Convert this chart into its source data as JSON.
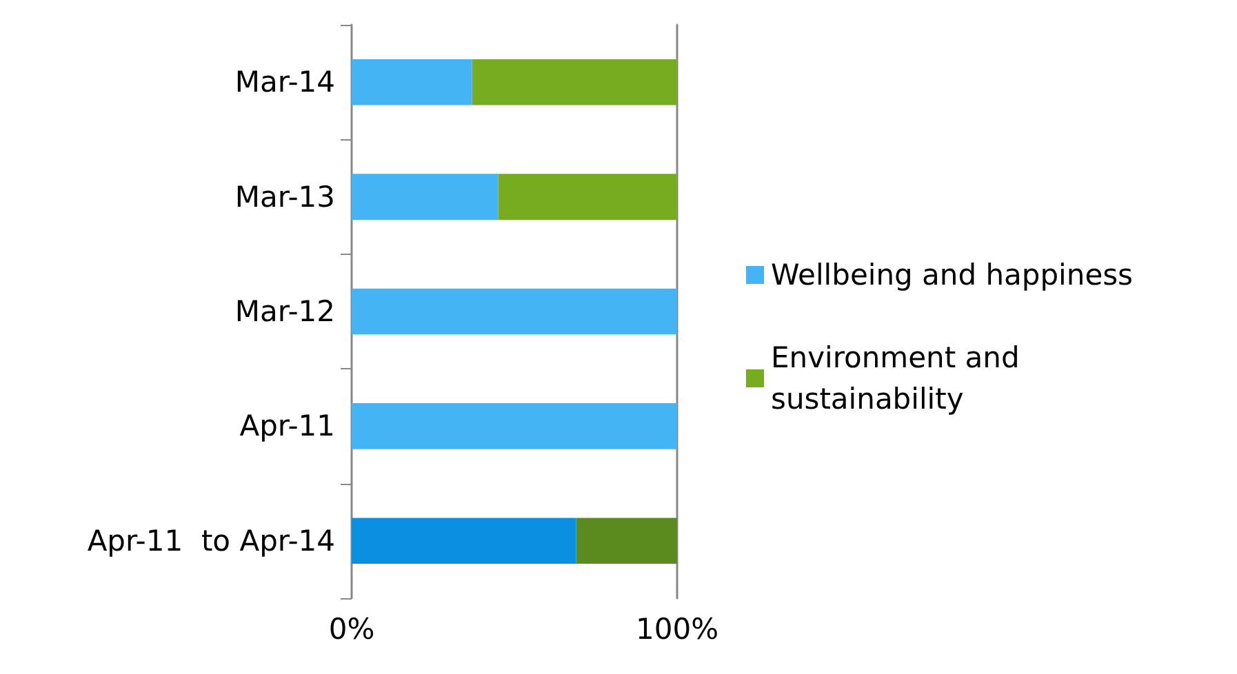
{
  "chart_data": {
    "type": "bar",
    "orientation": "horizontal",
    "stacked": true,
    "categories": [
      "Mar-14",
      "Mar-13",
      "Mar-12",
      "Apr-11",
      "Apr-11  to Apr-14"
    ],
    "series": [
      {
        "name": "Wellbeing and happiness",
        "color": "#45b4f5",
        "colors": [
          "#45b4f5",
          "#45b4f5",
          "#45b4f5",
          "#45b4f5",
          "#0b8fe0"
        ],
        "values": [
          37,
          45,
          100,
          100,
          69
        ]
      },
      {
        "name": "Environment and sustainability",
        "color": "#77ac20",
        "colors": [
          "#77ac20",
          "#77ac20",
          "#77ac20",
          "#77ac20",
          "#5b8a1f"
        ],
        "values": [
          63,
          55,
          0,
          0,
          31
        ]
      }
    ],
    "xlim": [
      0,
      100
    ],
    "xticks": [
      {
        "value": 0,
        "label": "0%"
      },
      {
        "value": 100,
        "label": "100%"
      }
    ],
    "legend": "right"
  }
}
